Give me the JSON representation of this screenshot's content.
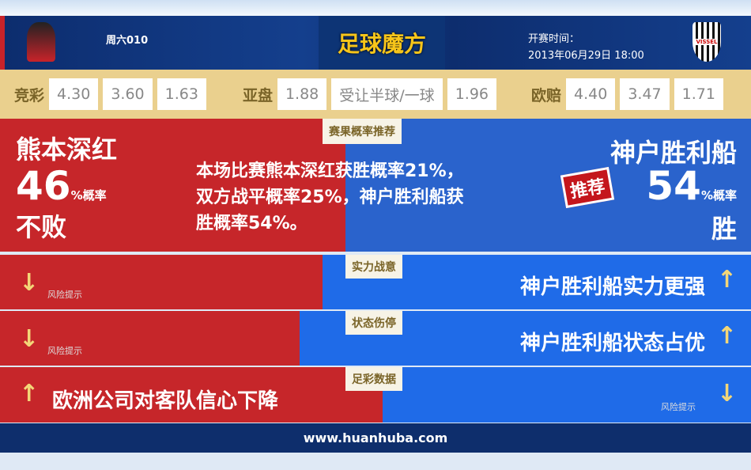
{
  "header": {
    "match_id": "周六010",
    "logo_text": "足球魔方",
    "kickoff_label": "开赛时间：",
    "kickoff_time": "2013年06月29日 18:00",
    "away_crest_text": "VISSEL"
  },
  "odds": {
    "jingcai": {
      "label": "竞彩",
      "values": [
        "4.30",
        "3.60",
        "1.63"
      ]
    },
    "yapan": {
      "label": "亚盘",
      "values": [
        "1.88",
        "受让半球/一球",
        "1.96"
      ]
    },
    "oupei": {
      "label": "欧赔",
      "values": [
        "4.40",
        "3.47",
        "1.71"
      ]
    }
  },
  "prediction": {
    "tag": "赛果概率推荐",
    "home_team": "熊本深红",
    "home_pct": "46",
    "pct_suffix": "%概率",
    "home_result": "不败",
    "summary": [
      "本场比赛熊本深红获胜概率21%，",
      "双方战平概率25%，神户胜利船获",
      "胜概率54%。"
    ],
    "away_team": "神户胜利船",
    "away_pct": "54",
    "away_result": "胜",
    "recommend_badge": "推荐",
    "home_share": 46
  },
  "rows": [
    {
      "tag": "实力战意",
      "left": "风险提示",
      "right": "神户胜利船实力更强",
      "left_arrow": "down",
      "right_arrow": "up"
    },
    {
      "tag": "状态伤停",
      "left": "风险提示",
      "right": "神户胜利船状态占优",
      "left_arrow": "down",
      "right_arrow": "up"
    },
    {
      "tag": "足彩数据",
      "left": "欧洲公司对客队信心下降",
      "right": "风险提示",
      "left_arrow": "up",
      "right_arrow": "down"
    }
  ],
  "footer": {
    "url": "www.huanhuba.com"
  },
  "colors": {
    "red": "#c6262a",
    "blue": "#2a63cc",
    "gold": "#ead08e"
  }
}
